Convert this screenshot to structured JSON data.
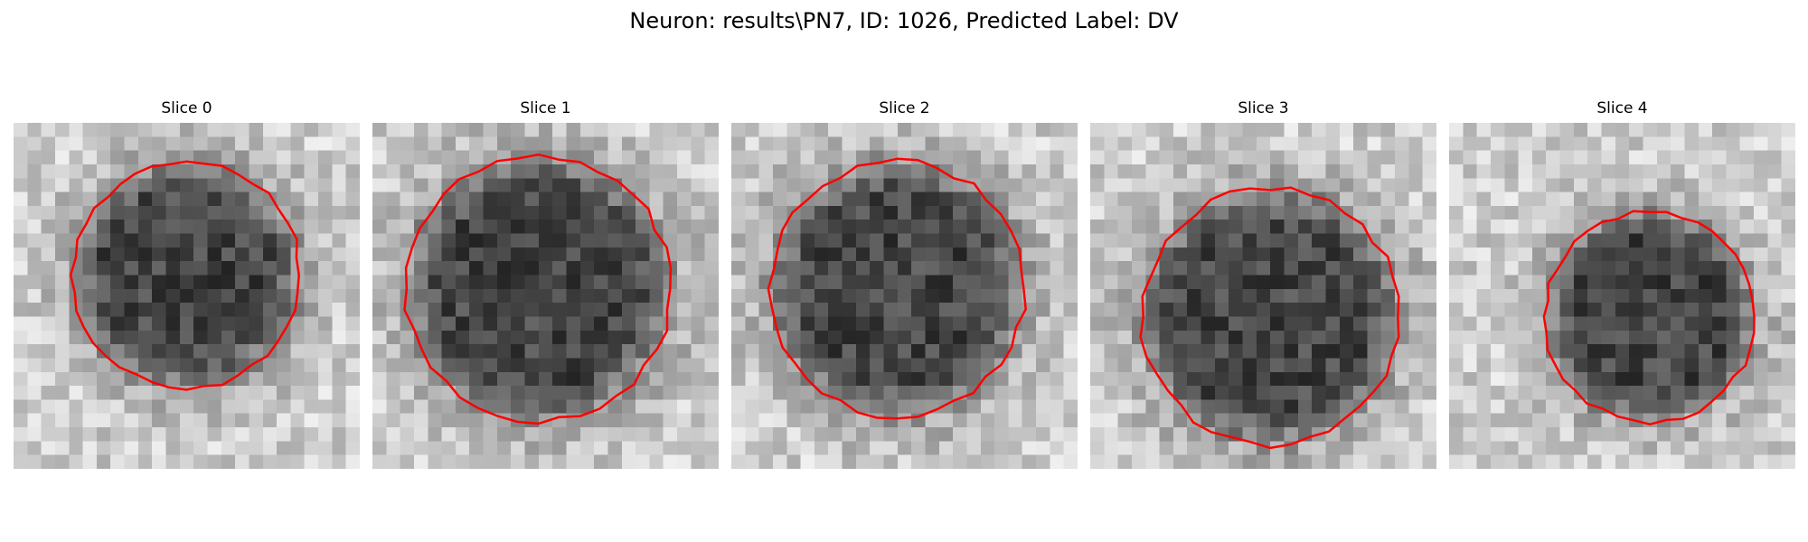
{
  "figure": {
    "title": "Neuron: results\\PN7, ID: 1026, Predicted Label: DV"
  },
  "panels": [
    {
      "title": "Slice 0"
    },
    {
      "title": "Slice 1"
    },
    {
      "title": "Slice 2"
    },
    {
      "title": "Slice 3"
    },
    {
      "title": "Slice 4"
    }
  ],
  "colors": {
    "contour": "#ff0000",
    "background": "#ffffff"
  }
}
